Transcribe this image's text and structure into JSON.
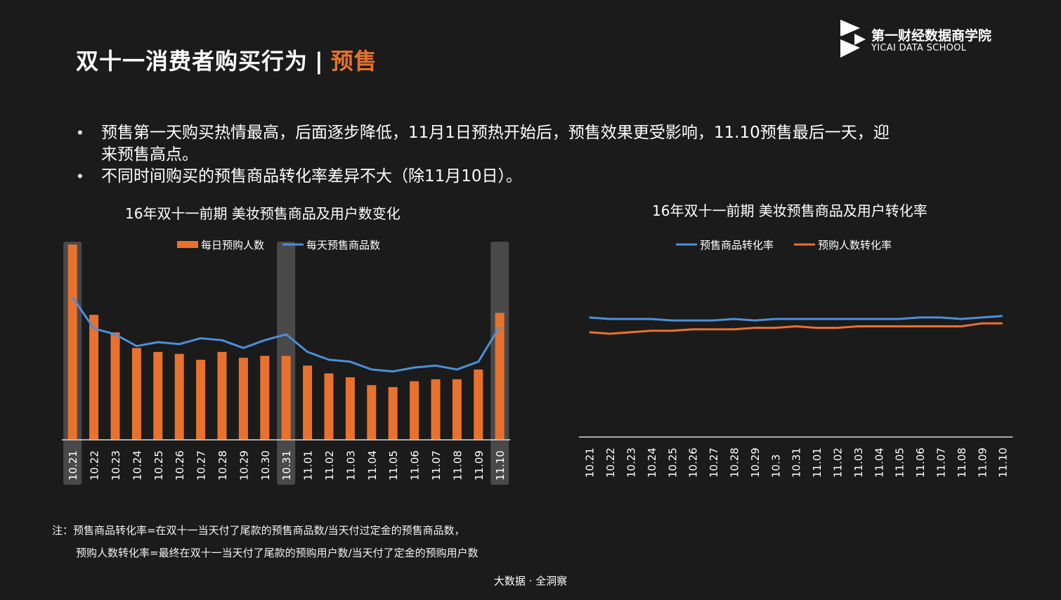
{
  "header": {
    "title_main": "双十一消费者购买行为",
    "title_sep": "|",
    "title_accent": "预售"
  },
  "logo": {
    "name_cn": "第一财经数据商学院",
    "name_en": "YICAI DATA SCHOOL"
  },
  "bullets": [
    "预售第一天购买热情最高，后面逐步降低，11月1日预热开始后，预售效果更受影响，11.10预售最后一天，迎来预售高点。",
    "不同时间购买的预售商品转化率差异不大（除11月10日）。"
  ],
  "bullet_symbol": "•",
  "notes": {
    "line1": "注：预售商品转化率=在双十一当天付了尾款的预售商品数/当天付过定金的预售商品数，",
    "line2": "预购人数转化率=最终在双十一当天付了尾款的预购用户数/当天付了定金的预购用户数"
  },
  "footer": "大数据 · 全洞察",
  "colors": {
    "background": "#1b1b1b",
    "orange": "#e8722d",
    "blue": "#4a90d9",
    "highlight": "#595959"
  },
  "chart_data": [
    {
      "type": "bar",
      "title": "16年双十一前期  美妆预售商品及用户数变化",
      "categories": [
        "10.21",
        "10.22",
        "10.23",
        "10.24",
        "10.25",
        "10.26",
        "10.27",
        "10.28",
        "10.29",
        "10.30",
        "10.31",
        "11.01",
        "11.02",
        "11.03",
        "11.04",
        "11.05",
        "11.06",
        "11.07",
        "11.08",
        "11.09",
        "11.10"
      ],
      "series": [
        {
          "name": "每日预购人数",
          "kind": "bar",
          "color": "#e8722d",
          "values": [
            100,
            64,
            55,
            47,
            45,
            44,
            41,
            45,
            42,
            43,
            43,
            38,
            34,
            32,
            28,
            27,
            30,
            31,
            31,
            36,
            65
          ]
        },
        {
          "name": "每天预售商品数",
          "kind": "line",
          "color": "#4a90d9",
          "values": [
            73,
            57,
            54,
            48,
            50,
            49,
            52,
            51,
            47,
            51,
            54,
            45,
            41,
            40,
            36,
            35,
            37,
            38,
            36,
            40,
            58
          ]
        }
      ],
      "highlighted": [
        "10.21",
        "10.31",
        "11.10"
      ],
      "legend": "top-center"
    },
    {
      "type": "line",
      "title": "16年双十一前期 美妆预售商品及用户转化率",
      "categories": [
        "10.21",
        "10.22",
        "10.23",
        "10.24",
        "10.25",
        "10.26",
        "10.27",
        "10.28",
        "10.29",
        "10.3",
        "10.31",
        "11.01",
        "11.02",
        "11.03",
        "11.04",
        "11.05",
        "11.06",
        "11.07",
        "11.08",
        "11.09",
        "11.10"
      ],
      "series": [
        {
          "name": "预售商品转化率",
          "color": "#4a90d9",
          "values": [
            0.81,
            0.8,
            0.8,
            0.8,
            0.79,
            0.79,
            0.79,
            0.8,
            0.79,
            0.8,
            0.8,
            0.8,
            0.8,
            0.8,
            0.8,
            0.8,
            0.81,
            0.81,
            0.8,
            0.81,
            0.82
          ]
        },
        {
          "name": "预购人数转化率",
          "color": "#e8722d",
          "values": [
            0.71,
            0.7,
            0.71,
            0.72,
            0.72,
            0.73,
            0.73,
            0.73,
            0.74,
            0.74,
            0.75,
            0.74,
            0.74,
            0.75,
            0.75,
            0.75,
            0.75,
            0.75,
            0.75,
            0.77,
            0.77
          ]
        }
      ],
      "legend": "top-center"
    }
  ]
}
